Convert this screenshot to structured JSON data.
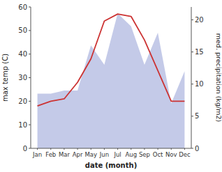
{
  "chart_data": {
    "type": "line",
    "xlabel": "date (month)",
    "ylabel": "max temp (C)",
    "y2label": "med. precipitation (kg/m2)",
    "categories": [
      "Jan",
      "Feb",
      "Mar",
      "Apr",
      "May",
      "Jun",
      "Jul",
      "Aug",
      "Sep",
      "Oct",
      "Nov",
      "Dec"
    ],
    "series": [
      {
        "type": "area",
        "axis": "y2",
        "color": "#b0b8e0",
        "values": [
          8.5,
          8.5,
          9,
          9,
          16,
          13,
          21,
          19,
          13,
          18,
          7,
          12
        ]
      },
      {
        "type": "line",
        "color": "#cc3333",
        "values": [
          18,
          20,
          21,
          28,
          38,
          54,
          57,
          56,
          46,
          33,
          20,
          20
        ]
      }
    ],
    "ylim": [
      0,
      60
    ],
    "yticks": [
      0,
      10,
      20,
      30,
      40,
      50,
      60
    ],
    "y2lim": [
      0,
      22
    ],
    "y2ticks": [
      0,
      5,
      10,
      15,
      20
    ],
    "grid": false
  }
}
